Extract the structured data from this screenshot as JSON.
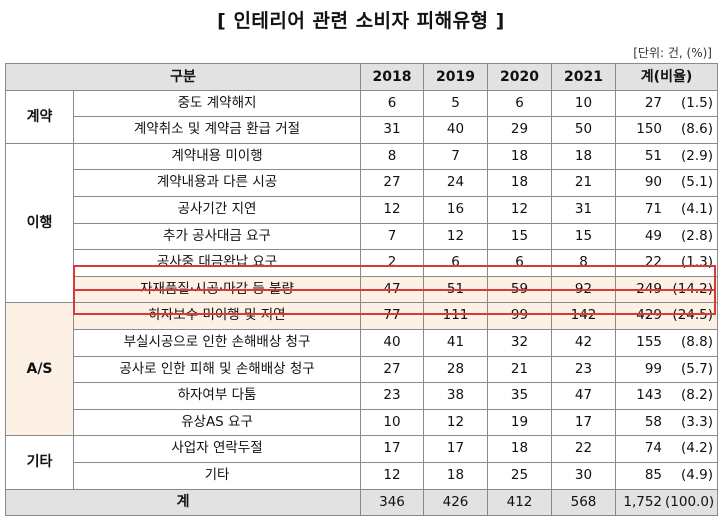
{
  "title": "[ 인테리어 관련 소비자 피해유형 ]",
  "unit": "[단위: 건, (%)]",
  "header": {
    "category": "구분",
    "years": [
      "2018",
      "2019",
      "2020",
      "2021"
    ],
    "total": "계(비율)"
  },
  "groups": [
    {
      "name": "계약",
      "rows": [
        {
          "item": "중도 계약해지",
          "values": [
            "6",
            "5",
            "6",
            "10"
          ],
          "total": "27",
          "pct": "(1.5)"
        },
        {
          "item": "계약취소 및 계약금 환급 거절",
          "values": [
            "31",
            "40",
            "29",
            "50"
          ],
          "total": "150",
          "pct": "(8.6)"
        }
      ]
    },
    {
      "name": "이행",
      "rows": [
        {
          "item": "계약내용 미이행",
          "values": [
            "8",
            "7",
            "18",
            "18"
          ],
          "total": "51",
          "pct": "(2.9)"
        },
        {
          "item": "계약내용과 다른 시공",
          "values": [
            "27",
            "24",
            "18",
            "21"
          ],
          "total": "90",
          "pct": "(5.1)"
        },
        {
          "item": "공사기간 지연",
          "values": [
            "12",
            "16",
            "12",
            "31"
          ],
          "total": "71",
          "pct": "(4.1)"
        },
        {
          "item": "추가 공사대금 요구",
          "values": [
            "7",
            "12",
            "15",
            "15"
          ],
          "total": "49",
          "pct": "(2.8)"
        },
        {
          "item": "공사중 대금완납 요구",
          "values": [
            "2",
            "6",
            "6",
            "8"
          ],
          "total": "22",
          "pct": "(1.3)"
        },
        {
          "item": "자재품질·시공·마감 등 불량",
          "values": [
            "47",
            "51",
            "59",
            "92"
          ],
          "total": "249",
          "pct": "(14.2)"
        }
      ]
    },
    {
      "name": "A/S",
      "rows": [
        {
          "item": "하자보수 미이행 및 지연",
          "values": [
            "77",
            "111",
            "99",
            "142"
          ],
          "total": "429",
          "pct": "(24.5)"
        },
        {
          "item": "부실시공으로 인한 손해배상 청구",
          "values": [
            "40",
            "41",
            "32",
            "42"
          ],
          "total": "155",
          "pct": "(8.8)"
        },
        {
          "item": "공사로 인한 피해 및 손해배상 청구",
          "values": [
            "27",
            "28",
            "21",
            "23"
          ],
          "total": "99",
          "pct": "(5.7)"
        },
        {
          "item": "하자여부 다툼",
          "values": [
            "23",
            "38",
            "35",
            "47"
          ],
          "total": "143",
          "pct": "(8.2)"
        },
        {
          "item": "유상AS 요구",
          "values": [
            "10",
            "12",
            "19",
            "17"
          ],
          "total": "58",
          "pct": "(3.3)"
        }
      ]
    },
    {
      "name": "기타",
      "rows": [
        {
          "item": "사업자 연락두절",
          "values": [
            "17",
            "17",
            "18",
            "22"
          ],
          "total": "74",
          "pct": "(4.2)"
        },
        {
          "item": "기타",
          "values": [
            "12",
            "18",
            "25",
            "30"
          ],
          "total": "85",
          "pct": "(4.9)"
        }
      ]
    }
  ],
  "sum": {
    "label": "계",
    "values": [
      "346",
      "426",
      "412",
      "568"
    ],
    "total": "1,752",
    "pct": "(100.0)"
  }
}
